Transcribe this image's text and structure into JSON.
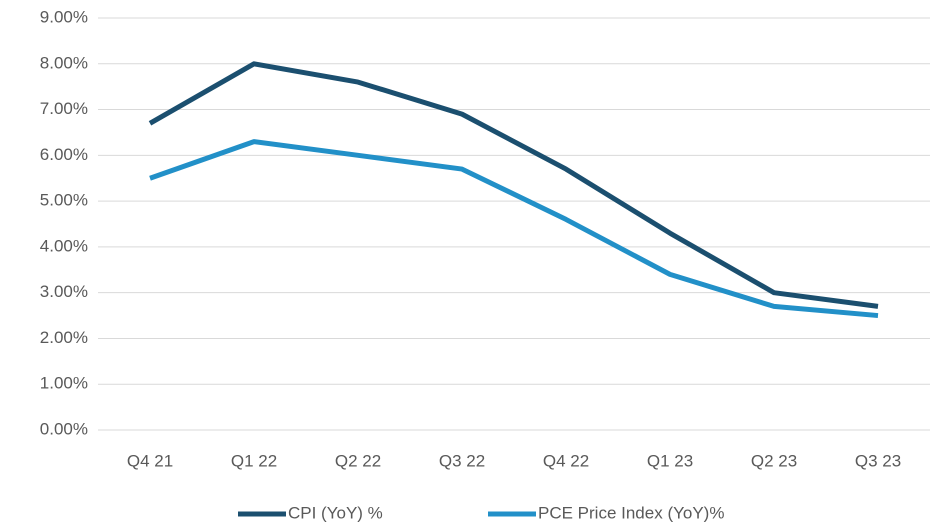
{
  "chart_data": {
    "type": "line",
    "categories": [
      "Q4 21",
      "Q1 22",
      "Q2 22",
      "Q3 22",
      "Q4 22",
      "Q1 23",
      "Q2 23",
      "Q3 23"
    ],
    "series": [
      {
        "name": "CPI (YoY) %",
        "color": "#1b4f6f",
        "values": [
          6.7,
          8.0,
          7.6,
          6.9,
          5.7,
          4.3,
          3.0,
          2.7
        ]
      },
      {
        "name": "PCE Price Index (YoY)%",
        "color": "#2290c8",
        "values": [
          5.5,
          6.3,
          6.0,
          5.7,
          4.6,
          3.4,
          2.7,
          2.5
        ]
      }
    ],
    "ylim": [
      0,
      9
    ],
    "yticks": [
      {
        "value": 0,
        "label": "0.00%"
      },
      {
        "value": 1,
        "label": "1.00%"
      },
      {
        "value": 2,
        "label": "2.00%"
      },
      {
        "value": 3,
        "label": "3.00%"
      },
      {
        "value": 4,
        "label": "4.00%"
      },
      {
        "value": 5,
        "label": "5.00%"
      },
      {
        "value": 6,
        "label": "6.00%"
      },
      {
        "value": 7,
        "label": "7.00%"
      },
      {
        "value": 8,
        "label": "8.00%"
      },
      {
        "value": 9,
        "label": "9.00%"
      }
    ],
    "grid": true,
    "legend": "bottom"
  }
}
